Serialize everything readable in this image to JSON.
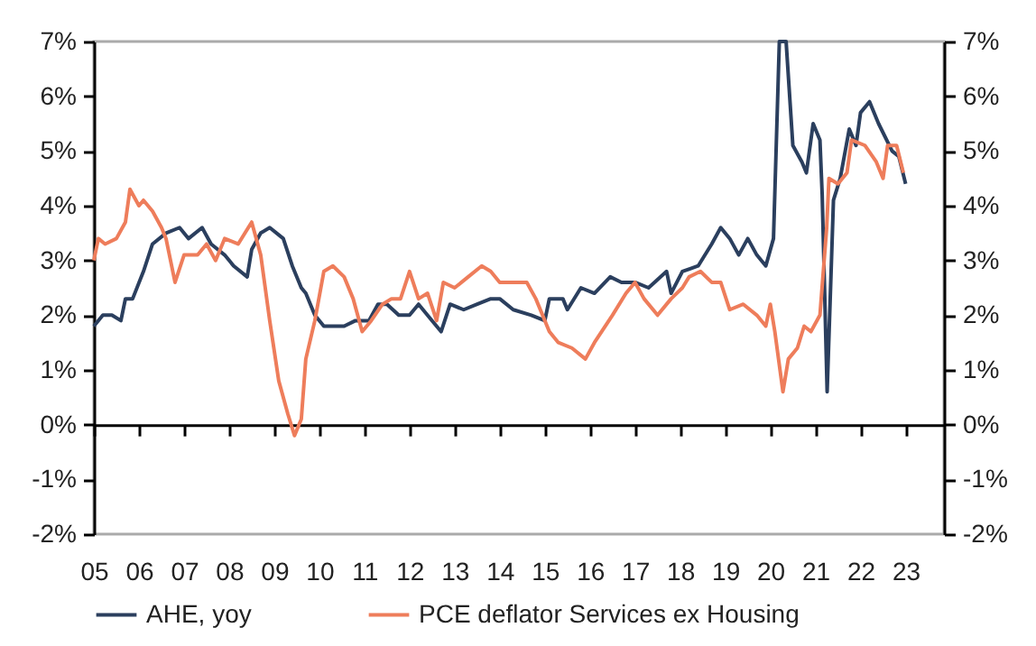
{
  "chart_data": {
    "type": "line",
    "series": [
      {
        "name": "AHE, yoy",
        "color": "#2b3f5e",
        "x": [
          2005.0,
          2005.2,
          2005.4,
          2005.6,
          2005.7,
          2005.86,
          2006.1,
          2006.3,
          2006.6,
          2006.9,
          2007.1,
          2007.4,
          2007.6,
          2007.9,
          2008.1,
          2008.4,
          2008.5,
          2008.7,
          2008.9,
          2009.2,
          2009.4,
          2009.6,
          2009.7,
          2009.9,
          2010.1,
          2010.35,
          2010.55,
          2010.8,
          2011.1,
          2011.3,
          2011.5,
          2011.76,
          2012.0,
          2012.2,
          2012.5,
          2012.7,
          2012.9,
          2013.2,
          2013.5,
          2013.8,
          2014.0,
          2014.3,
          2014.7,
          2015.0,
          2015.1,
          2015.4,
          2015.5,
          2015.8,
          2016.1,
          2016.45,
          2016.7,
          2017.0,
          2017.3,
          2017.7,
          2017.8,
          2018.05,
          2018.4,
          2018.7,
          2018.9,
          2019.1,
          2019.3,
          2019.5,
          2019.7,
          2019.9,
          2020.07,
          2020.2,
          2020.35,
          2020.5,
          2020.7,
          2020.8,
          2020.95,
          2021.1,
          2021.15,
          2021.26,
          2021.4,
          2021.55,
          2021.75,
          2021.9,
          2022.0,
          2022.2,
          2022.4,
          2022.7,
          2022.85,
          2023.0
        ],
        "values": [
          1.8,
          2.0,
          2.0,
          1.9,
          2.3,
          2.3,
          2.8,
          3.3,
          3.5,
          3.6,
          3.4,
          3.6,
          3.3,
          3.1,
          2.9,
          2.7,
          3.2,
          3.5,
          3.6,
          3.4,
          2.9,
          2.5,
          2.4,
          2.0,
          1.8,
          1.8,
          1.8,
          1.9,
          1.9,
          2.2,
          2.2,
          2.0,
          2.0,
          2.2,
          1.9,
          1.7,
          2.2,
          2.1,
          2.2,
          2.3,
          2.3,
          2.1,
          2.0,
          1.9,
          2.3,
          2.3,
          2.1,
          2.5,
          2.4,
          2.7,
          2.6,
          2.6,
          2.5,
          2.8,
          2.4,
          2.8,
          2.9,
          3.3,
          3.6,
          3.4,
          3.1,
          3.4,
          3.1,
          2.9,
          3.4,
          7.0,
          7.0,
          5.1,
          4.8,
          4.6,
          5.5,
          5.2,
          4.2,
          0.6,
          4.1,
          4.5,
          5.4,
          5.1,
          5.7,
          5.9,
          5.5,
          5.0,
          4.9,
          4.4
        ]
      },
      {
        "name": "PCE deflator Services ex Housing",
        "color": "#ee7d5b",
        "x": [
          2005.0,
          2005.1,
          2005.25,
          2005.5,
          2005.7,
          2005.8,
          2006.0,
          2006.1,
          2006.3,
          2006.5,
          2006.6,
          2006.8,
          2007.0,
          2007.3,
          2007.5,
          2007.7,
          2007.9,
          2008.2,
          2008.5,
          2008.7,
          2008.9,
          2009.1,
          2009.3,
          2009.45,
          2009.6,
          2009.7,
          2009.9,
          2010.1,
          2010.3,
          2010.55,
          2010.75,
          2010.95,
          2011.15,
          2011.4,
          2011.6,
          2011.8,
          2012.0,
          2012.2,
          2012.4,
          2012.6,
          2012.75,
          2013.0,
          2013.3,
          2013.6,
          2013.8,
          2014.0,
          2014.3,
          2014.6,
          2014.8,
          2015.1,
          2015.3,
          2015.6,
          2015.9,
          2016.1,
          2016.5,
          2016.8,
          2017.0,
          2017.2,
          2017.5,
          2017.8,
          2018.05,
          2018.2,
          2018.45,
          2018.7,
          2018.9,
          2019.1,
          2019.4,
          2019.7,
          2019.9,
          2020.0,
          2020.1,
          2020.28,
          2020.4,
          2020.6,
          2020.75,
          2020.9,
          2021.1,
          2021.25,
          2021.3,
          2021.5,
          2021.7,
          2021.8,
          2022.1,
          2022.35,
          2022.5,
          2022.6,
          2022.8,
          2022.95
        ],
        "values": [
          3.0,
          3.4,
          3.3,
          3.4,
          3.7,
          4.3,
          4.0,
          4.1,
          3.9,
          3.6,
          3.4,
          2.6,
          3.1,
          3.1,
          3.3,
          3.0,
          3.4,
          3.3,
          3.7,
          3.1,
          1.9,
          0.8,
          0.2,
          -0.2,
          0.1,
          1.2,
          1.9,
          2.8,
          2.9,
          2.7,
          2.3,
          1.7,
          1.9,
          2.2,
          2.3,
          2.3,
          2.8,
          2.3,
          2.4,
          1.9,
          2.6,
          2.5,
          2.7,
          2.9,
          2.8,
          2.6,
          2.6,
          2.6,
          2.3,
          1.7,
          1.5,
          1.4,
          1.2,
          1.5,
          2.0,
          2.4,
          2.6,
          2.3,
          2.0,
          2.3,
          2.5,
          2.7,
          2.8,
          2.6,
          2.6,
          2.1,
          2.2,
          2.0,
          1.8,
          2.2,
          1.7,
          0.6,
          1.2,
          1.4,
          1.8,
          1.7,
          2.0,
          3.6,
          4.5,
          4.4,
          4.6,
          5.2,
          5.1,
          4.8,
          4.5,
          5.1,
          5.1,
          4.6
        ]
      }
    ],
    "xlim": [
      2005,
      2023.85
    ],
    "xticks": [
      {
        "value": 2005,
        "label": "05"
      },
      {
        "value": 2006,
        "label": "06"
      },
      {
        "value": 2007,
        "label": "07"
      },
      {
        "value": 2008,
        "label": "08"
      },
      {
        "value": 2009,
        "label": "09"
      },
      {
        "value": 2010,
        "label": "10"
      },
      {
        "value": 2011,
        "label": "11"
      },
      {
        "value": 2012,
        "label": "12"
      },
      {
        "value": 2013,
        "label": "13"
      },
      {
        "value": 2014,
        "label": "14"
      },
      {
        "value": 2015,
        "label": "15"
      },
      {
        "value": 2016,
        "label": "16"
      },
      {
        "value": 2017,
        "label": "17"
      },
      {
        "value": 2018,
        "label": "18"
      },
      {
        "value": 2019,
        "label": "19"
      },
      {
        "value": 2020,
        "label": "20"
      },
      {
        "value": 2021,
        "label": "21"
      },
      {
        "value": 2022,
        "label": "22"
      },
      {
        "value": 2023,
        "label": "23"
      }
    ],
    "ylim": [
      -2,
      7
    ],
    "yticks": [
      {
        "value": -2,
        "label": "-2%"
      },
      {
        "value": -1,
        "label": "-1%"
      },
      {
        "value": 0,
        "label": "0%"
      },
      {
        "value": 1,
        "label": "1%"
      },
      {
        "value": 2,
        "label": "2%"
      },
      {
        "value": 3,
        "label": "3%"
      },
      {
        "value": 4,
        "label": "4%"
      },
      {
        "value": 5,
        "label": "5%"
      },
      {
        "value": 6,
        "label": "6%"
      },
      {
        "value": 7,
        "label": "7%"
      }
    ],
    "y2lim": [
      -2,
      7
    ],
    "y2ticks": [
      {
        "value": -2,
        "label": "-2%"
      },
      {
        "value": -1,
        "label": "-1%"
      },
      {
        "value": 0,
        "label": "0%"
      },
      {
        "value": 1,
        "label": "1%"
      },
      {
        "value": 2,
        "label": "2%"
      },
      {
        "value": 3,
        "label": "3%"
      },
      {
        "value": 4,
        "label": "4%"
      },
      {
        "value": 5,
        "label": "5%"
      },
      {
        "value": 6,
        "label": "6%"
      },
      {
        "value": 7,
        "label": "7%"
      }
    ],
    "legend": "bottom",
    "line_style": "solid"
  }
}
